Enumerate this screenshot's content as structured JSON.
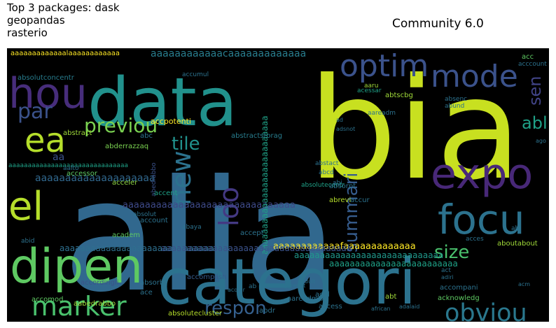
{
  "figure": {
    "title_lines": [
      "Top 3 packages: dask",
      "geopandas",
      "rasterio"
    ],
    "subtitle": "Community 6.0"
  },
  "chart_data": {
    "type": "wordcloud",
    "title": "Community 6.0",
    "background": "#000000",
    "colormap": "viridis",
    "words": [
      {
        "text": "alia",
        "weight": 1.0,
        "color": "#31688e"
      },
      {
        "text": "bia",
        "weight": 0.85,
        "color": "#c8e020"
      },
      {
        "text": "categori",
        "weight": 0.62,
        "color": "#2c728e"
      },
      {
        "text": "data",
        "weight": 0.58,
        "color": "#21918c"
      },
      {
        "text": "dipen",
        "weight": 0.45,
        "color": "#5ec962"
      },
      {
        "text": "hou",
        "weight": 0.38,
        "color": "#472d7b"
      },
      {
        "text": "expo",
        "weight": 0.38,
        "color": "#482878"
      },
      {
        "text": "focu",
        "weight": 0.38,
        "color": "#2c728e"
      },
      {
        "text": "el",
        "weight": 0.36,
        "color": "#b5de2b"
      },
      {
        "text": "ea",
        "weight": 0.3,
        "color": "#b5de2b"
      },
      {
        "text": "mode",
        "weight": 0.28,
        "color": "#3b528b"
      },
      {
        "text": "optim",
        "weight": 0.28,
        "color": "#3b528b"
      },
      {
        "text": "marker",
        "weight": 0.24,
        "color": "#4ac16d"
      },
      {
        "text": "new",
        "weight": 0.24,
        "color": "#2c728e"
      },
      {
        "text": "loo",
        "weight": 0.24,
        "color": "#443983"
      },
      {
        "text": "obviou",
        "weight": 0.22,
        "color": "#2a788e"
      },
      {
        "text": "par",
        "weight": 0.2,
        "color": "#3b528b"
      },
      {
        "text": "previou",
        "weight": 0.17,
        "color": "#7ad151"
      },
      {
        "text": "size",
        "weight": 0.15,
        "color": "#4ac16d"
      },
      {
        "text": "summari",
        "weight": 0.15,
        "color": "#365c8d"
      },
      {
        "text": "respon",
        "weight": 0.15,
        "color": "#355f8d"
      },
      {
        "text": "tile",
        "weight": 0.15,
        "color": "#21918c"
      },
      {
        "text": "sen",
        "weight": 0.15,
        "color": "#414487"
      },
      {
        "text": "abl",
        "weight": 0.14,
        "color": "#1fa187"
      },
      {
        "text": "aaaaaaaaaaaaaaaaaaaa",
        "weight": 0.11,
        "color": "#31688e"
      },
      {
        "text": "aaaaaaaaaaaacaaaaaaaaaaaaa",
        "weight": 0.09,
        "color": "#287d8e"
      },
      {
        "text": "aaaaaaaaaaaaaaaaaaaaaaaaaaaaaaa",
        "weight": 0.07,
        "color": "#3e4a89"
      },
      {
        "text": "aaaaaaaaaaaafaaaaaaaaaaaaa",
        "weight": 0.07,
        "color": "#fde725"
      },
      {
        "text": "aaaaaaaaaaaaaaaaaaaaaaaaaaaaa",
        "weight": 0.06,
        "color": "#1f988b"
      },
      {
        "text": "aaaaaaaaaaaaaaaaaaaaaaaaaaaaaaaa",
        "weight": 0.06,
        "color": "#2e6f8e"
      },
      {
        "text": "aaaaaaaaaaaaaaaaaaaaaaaaaaa",
        "weight": 0.06,
        "color": "#1fa187"
      },
      {
        "text": "aaaaaaaaaaaaaaaaaaaaaaaaa",
        "weight": 0.06,
        "color": "#1fa187"
      },
      {
        "text": "aaaaaaaaaaaaaaaaaaaaaaaaaaaaaaaaaaaaa",
        "weight": 0.05,
        "color": "#3b528b"
      },
      {
        "text": "aaaaaaaaaaaaalaaaaaaaaaaaa",
        "weight": 0.05,
        "color": "#fde725"
      },
      {
        "text": "aaaaaaaaaaaaaaaaaaaaaaaaaaaaaaa",
        "weight": 0.04,
        "color": "#1fa187"
      },
      {
        "text": "abstractstorag",
        "weight": 0.04,
        "color": "#287d8e"
      },
      {
        "text": "accpotenti",
        "weight": 0.04,
        "color": "#fde725"
      },
      {
        "text": "abderrazzaq",
        "weight": 0.04,
        "color": "#7ad151"
      },
      {
        "text": "absolutecentr",
        "weight": 0.04,
        "color": "#1fa187"
      },
      {
        "text": "abedrabbo",
        "weight": 0.04,
        "color": "#3b528b"
      },
      {
        "text": "absolutconcentr",
        "weight": 0.04,
        "color": "#287d8e"
      },
      {
        "text": "aboutabout",
        "weight": 0.04,
        "color": "#a0da39"
      },
      {
        "text": "abstract",
        "weight": 0.04,
        "color": "#9fda3a"
      },
      {
        "text": "accessor",
        "weight": 0.04,
        "color": "#5ec962"
      },
      {
        "text": "acceler",
        "weight": 0.04,
        "color": "#8fd744"
      },
      {
        "text": "accent",
        "weight": 0.04,
        "color": "#1fa187"
      },
      {
        "text": "account",
        "weight": 0.04,
        "color": "#2c728e"
      },
      {
        "text": "accompani",
        "weight": 0.04,
        "color": "#2c728e"
      },
      {
        "text": "acknowledg",
        "weight": 0.04,
        "color": "#5ec962"
      },
      {
        "text": "accordingli",
        "weight": 0.04,
        "color": "#3b528b"
      },
      {
        "text": "accomplish",
        "weight": 0.04,
        "color": "#365c8d"
      },
      {
        "text": "aabedrabbo",
        "weight": 0.04,
        "color": "#a0da39"
      },
      {
        "text": "absolutecluster",
        "weight": 0.04,
        "color": "#b5de2b"
      },
      {
        "text": "aareadmtxt",
        "weight": 0.04,
        "color": "#2c728e"
      },
      {
        "text": "abrevi",
        "weight": 0.04,
        "color": "#b5de2b"
      },
      {
        "text": "absorpt",
        "weight": 0.04,
        "color": "#2c728e"
      },
      {
        "text": "accur",
        "weight": 0.04,
        "color": "#2c728e"
      },
      {
        "text": "abtscbg",
        "weight": 0.04,
        "color": "#a0da39"
      },
      {
        "text": "acessar",
        "weight": 0.04,
        "color": "#1fa187"
      },
      {
        "text": "aareadm",
        "weight": 0.04,
        "color": "#2c728e"
      },
      {
        "text": "acccount",
        "weight": 0.04,
        "color": "#2c728e"
      },
      {
        "text": "academ",
        "weight": 0.04,
        "color": "#5ec962"
      },
      {
        "text": "accept",
        "weight": 0.04,
        "color": "#2c728e"
      },
      {
        "text": "aaru",
        "weight": 0.04,
        "color": "#a0da39"
      },
      {
        "text": "abt",
        "weight": 0.04,
        "color": "#a0da39"
      },
      {
        "text": "access",
        "weight": 0.04,
        "color": "#2c728e"
      },
      {
        "text": "acid",
        "weight": 0.04,
        "color": "#2c728e"
      },
      {
        "text": "abdr",
        "weight": 0.04,
        "color": "#2c728e"
      },
      {
        "text": "ace",
        "weight": 0.04,
        "color": "#2c728e"
      },
      {
        "text": "absorb",
        "weight": 0.04,
        "color": "#2c728e"
      },
      {
        "text": "accomod",
        "weight": 0.04,
        "color": "#5ec962"
      },
      {
        "text": "abid",
        "weight": 0.04,
        "color": "#2c728e"
      },
      {
        "text": "aa",
        "weight": 0.05,
        "color": "#3b528b"
      },
      {
        "text": "abc",
        "weight": 0.04,
        "color": "#2c728e"
      },
      {
        "text": "abund",
        "weight": 0.03,
        "color": "#2c728e"
      },
      {
        "text": "absenc",
        "weight": 0.03,
        "color": "#2c728e"
      },
      {
        "text": "acc",
        "weight": 0.03,
        "color": "#5ec962"
      },
      {
        "text": "aalto",
        "weight": 0.03,
        "color": "#2c728e"
      },
      {
        "text": "accumul",
        "weight": 0.03,
        "color": "#2c728e"
      },
      {
        "text": "abstact",
        "weight": 0.03,
        "color": "#2c728e"
      },
      {
        "text": "abcd",
        "weight": 0.03,
        "color": "#2c728e"
      },
      {
        "text": "abaya",
        "weight": 0.03,
        "color": "#2c728e"
      },
      {
        "text": "abi",
        "weight": 0.03,
        "color": "#2c728e"
      },
      {
        "text": "acces",
        "weight": 0.03,
        "color": "#2c728e"
      },
      {
        "text": "absolut",
        "weight": 0.03,
        "color": "#2c728e"
      },
      {
        "text": "ab",
        "weight": 0.03,
        "color": "#2c728e"
      },
      {
        "text": "abl",
        "weight": 0.03,
        "color": "#2c728e"
      },
      {
        "text": "act",
        "weight": 0.03,
        "color": "#2c728e"
      },
      {
        "text": "adiri",
        "weight": 0.02,
        "color": "#2c728e"
      },
      {
        "text": "acm",
        "weight": 0.02,
        "color": "#2c728e"
      },
      {
        "text": "ad",
        "weight": 0.02,
        "color": "#2c728e"
      },
      {
        "text": "adsnot",
        "weight": 0.02,
        "color": "#2c728e"
      },
      {
        "text": "adult",
        "weight": 0.02,
        "color": "#2c728e"
      },
      {
        "text": "adalaid",
        "weight": 0.02,
        "color": "#2c728e"
      },
      {
        "text": "african",
        "weight": 0.02,
        "color": "#2c728e"
      },
      {
        "text": "aggregat",
        "weight": 0.02,
        "color": "#2c728e"
      },
      {
        "text": "acquir",
        "weight": 0.02,
        "color": "#2c728e"
      },
      {
        "text": "ago",
        "weight": 0.02,
        "color": "#2c728e"
      }
    ]
  }
}
